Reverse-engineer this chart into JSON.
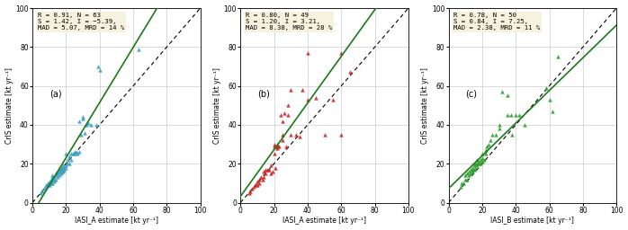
{
  "panels": [
    {
      "label": "(a)",
      "xlabel": "IASI_A estimate [kt yr⁻¹]",
      "ylabel": "CrIS estimate [kt yr⁻¹]",
      "stats": "R = 0.91, N = 63\nS = 1.42, I = −5.39,\nMAD = 5.07, MRD = 14 %",
      "slope": 1.42,
      "intercept": -5.39,
      "color": "#3a9fc0",
      "scatter_x": [
        5,
        6,
        7,
        8,
        8,
        9,
        9,
        10,
        10,
        10,
        11,
        11,
        12,
        12,
        12,
        13,
        13,
        13,
        14,
        14,
        14,
        15,
        15,
        15,
        16,
        16,
        16,
        17,
        17,
        17,
        18,
        18,
        18,
        18,
        19,
        19,
        20,
        20,
        20,
        21,
        21,
        22,
        22,
        23,
        23,
        24,
        25,
        25,
        26,
        27,
        28,
        28,
        29,
        30,
        30,
        31,
        32,
        33,
        35,
        38,
        39,
        40,
        63
      ],
      "scatter_y": [
        5,
        6,
        7,
        8,
        9,
        9,
        10,
        9,
        10,
        11,
        10,
        12,
        10,
        13,
        14,
        11,
        12,
        13,
        12,
        14,
        15,
        13,
        15,
        16,
        14,
        16,
        17,
        15,
        16,
        18,
        16,
        17,
        18,
        19,
        17,
        18,
        18,
        19,
        25,
        20,
        22,
        20,
        24,
        22,
        25,
        25,
        25,
        26,
        26,
        25,
        26,
        42,
        35,
        43,
        44,
        36,
        40,
        41,
        40,
        40,
        70,
        68,
        79
      ]
    },
    {
      "label": "(b)",
      "xlabel": "IASI_A estimate [kt yr⁻¹]",
      "ylabel": "CrIS estimate [kt yr⁻¹]",
      "stats": "R = 0.80, N = 49\nS = 1.20, I = 3.21,\nMAD = 8.38, MRD = 28 %",
      "slope": 1.2,
      "intercept": 3.21,
      "color": "#cc2222",
      "scatter_x": [
        5,
        6,
        7,
        8,
        9,
        10,
        10,
        11,
        11,
        12,
        13,
        14,
        14,
        15,
        15,
        16,
        17,
        18,
        18,
        19,
        20,
        20,
        21,
        22,
        22,
        23,
        24,
        25,
        25,
        26,
        27,
        28,
        30,
        33,
        35,
        37,
        40,
        40,
        45,
        50,
        55,
        60,
        60,
        65,
        20,
        22,
        25,
        28,
        30
      ],
      "scatter_y": [
        5,
        6,
        7,
        8,
        9,
        9,
        11,
        10,
        12,
        13,
        12,
        13,
        16,
        15,
        17,
        17,
        17,
        15,
        19,
        16,
        29,
        30,
        18,
        30,
        29,
        29,
        45,
        32,
        35,
        46,
        29,
        45,
        35,
        35,
        34,
        58,
        53,
        77,
        54,
        35,
        53,
        35,
        77,
        67,
        25,
        28,
        42,
        50,
        58
      ]
    },
    {
      "label": "(c)",
      "xlabel": "IASI_B estimate [kt yr⁻¹]",
      "ylabel": "CrIS estimate [kt yr⁻¹]",
      "stats": "R = 0.78, N = 50\nS = 0.84, I = 7.25,\nMAD = 2.38, MRD = 11 %",
      "slope": 0.84,
      "intercept": 7.25,
      "color": "#2ca02c",
      "scatter_x": [
        7,
        8,
        9,
        10,
        10,
        11,
        11,
        12,
        12,
        13,
        13,
        14,
        14,
        14,
        15,
        15,
        16,
        16,
        17,
        17,
        17,
        18,
        18,
        19,
        19,
        20,
        20,
        20,
        21,
        22,
        22,
        23,
        24,
        25,
        26,
        28,
        30,
        30,
        32,
        35,
        35,
        37,
        38,
        40,
        42,
        45,
        58,
        60,
        62,
        65
      ],
      "scatter_y": [
        8,
        10,
        10,
        12,
        14,
        12,
        15,
        14,
        16,
        15,
        17,
        16,
        17,
        18,
        17,
        19,
        18,
        20,
        19,
        20,
        22,
        20,
        21,
        20,
        22,
        21,
        23,
        25,
        22,
        25,
        27,
        29,
        30,
        32,
        35,
        35,
        38,
        40,
        57,
        45,
        55,
        45,
        35,
        45,
        45,
        40,
        59,
        53,
        47,
        75
      ]
    }
  ],
  "xlim": [
    0,
    100
  ],
  "ylim": [
    0,
    100
  ],
  "xticks": [
    0,
    20,
    40,
    60,
    80,
    100
  ],
  "yticks": [
    0,
    20,
    40,
    60,
    80,
    100
  ],
  "grid_color": "#cccccc",
  "stats_box_facecolor": "#f5f0d8",
  "figsize": [
    6.98,
    2.56
  ],
  "dpi": 100
}
